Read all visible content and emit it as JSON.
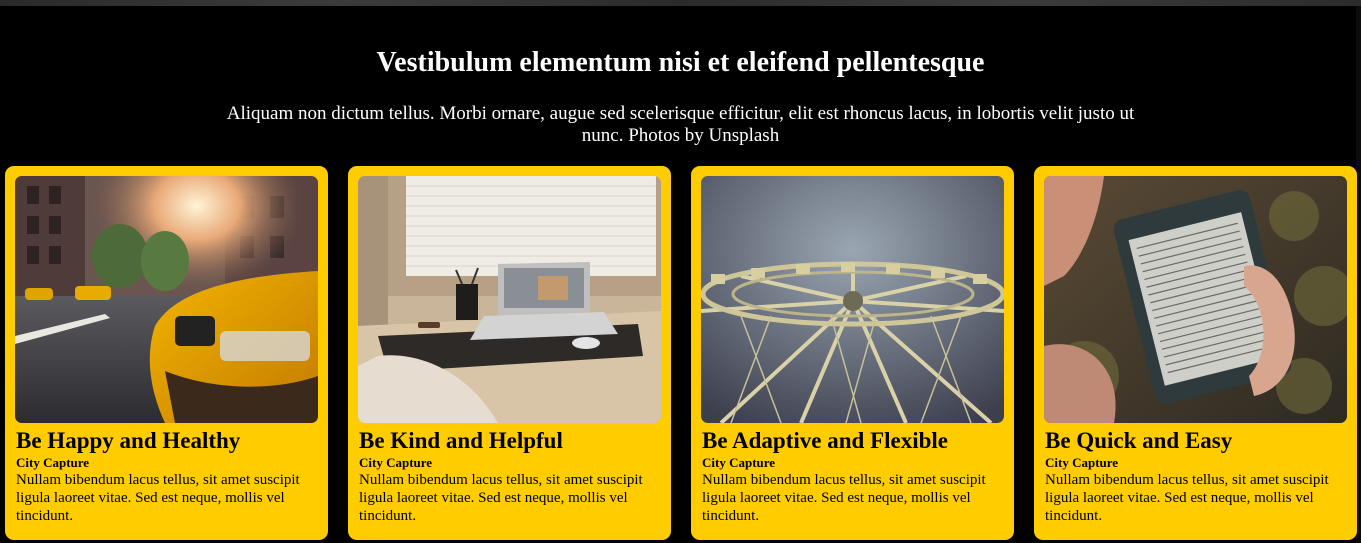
{
  "header": {
    "title": "Vestibulum elementum nisi et eleifend pellentesque",
    "subtitle": "Aliquam non dictum tellus. Morbi ornare, augue sed scelerisque efficitur, elit est rhoncus lacus, in lobortis velit justo ut nunc. Photos by Unsplash"
  },
  "cards": [
    {
      "title": "Be Happy and Healthy",
      "subtitle": "City Capture",
      "text": "Nullam bibendum lacus tellus, sit amet suscipit ligula laoreet vitae. Sed est neque, mollis vel tincidunt.",
      "image": "city-taxi-photo"
    },
    {
      "title": "Be Kind and Helpful",
      "subtitle": "City Capture",
      "text": "Nullam bibendum lacus tellus, sit amet suscipit ligula laoreet vitae. Sed est neque, mollis vel tincidunt.",
      "image": "laptop-desk-photo"
    },
    {
      "title": "Be Adaptive and Flexible",
      "subtitle": "City Capture",
      "text": "Nullam bibendum lacus tellus, sit amet suscipit ligula laoreet vitae. Sed est neque, mollis vel tincidunt.",
      "image": "ferris-wheel-photo"
    },
    {
      "title": "Be Quick and Easy",
      "subtitle": "City Capture",
      "text": "Nullam bibendum lacus tellus, sit amet suscipit ligula laoreet vitae. Sed est neque, mollis vel tincidunt.",
      "image": "ereader-photo"
    }
  ],
  "colors": {
    "background": "#000000",
    "card": "#ffcc00",
    "text_light": "#ffffff",
    "text_dark": "#000000"
  }
}
